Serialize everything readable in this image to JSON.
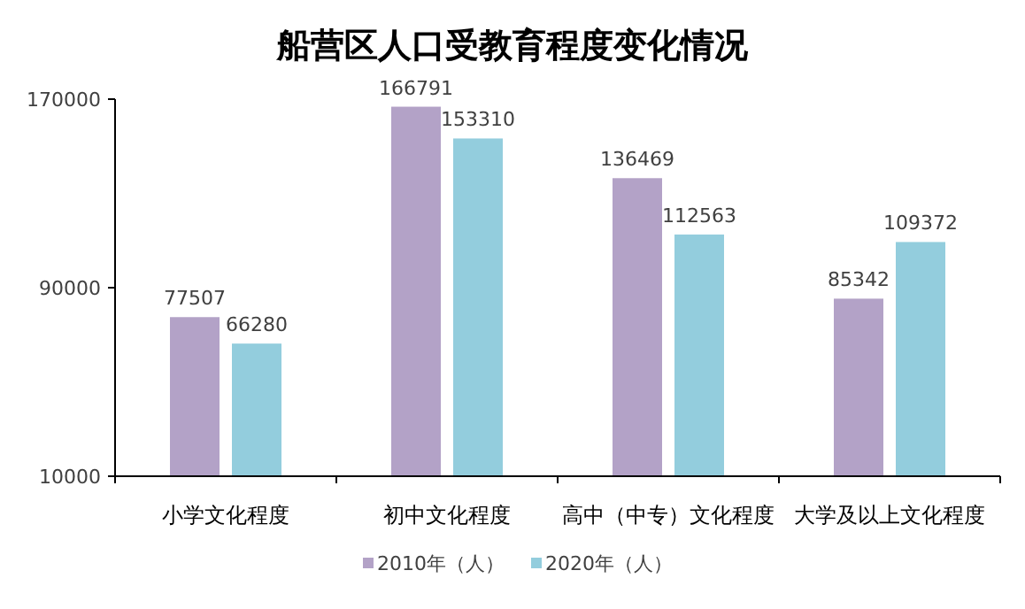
{
  "chart_data": {
    "type": "bar",
    "title": "船营区人口受教育程度变化情况",
    "categories": [
      "小学文化程度",
      "初中文化程度",
      "高中（中专）文化程度",
      "大学及以上文化程度"
    ],
    "series": [
      {
        "name": "2010年（人）",
        "color": "#b3a2c7",
        "values": [
          77507,
          166791,
          136469,
          85342
        ]
      },
      {
        "name": "2020年（人）",
        "color": "#93cddd",
        "values": [
          66280,
          153310,
          112563,
          109372
        ]
      }
    ],
    "ylim": [
      10000,
      170000
    ],
    "yticks": [
      10000,
      90000,
      170000
    ],
    "grid": false,
    "legend": "bottom",
    "data_labels": true
  }
}
